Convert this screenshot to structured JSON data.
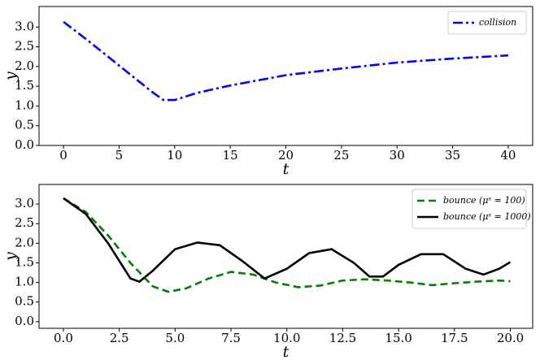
{
  "chart_data": [
    {
      "type": "line",
      "x_label": "t",
      "y_label": "y",
      "legend": "upper right",
      "xlim": [
        -2.2,
        42.2
      ],
      "ylim": [
        0,
        3.52
      ],
      "xticks": [
        0,
        5,
        10,
        15,
        20,
        25,
        30,
        35,
        40
      ],
      "yticks": [
        {
          "value": 0,
          "label": "0.0"
        },
        0.5,
        {
          "value": 1,
          "label": "1.0"
        },
        1.5,
        {
          "value": 2,
          "label": "2.0"
        },
        2.5,
        {
          "value": 3,
          "label": "3.0"
        }
      ],
      "series": [
        {
          "name": "collision",
          "color": "#0000ff",
          "linestyle": "dashdot",
          "x": [
            0,
            2,
            4,
            6,
            8,
            9,
            10,
            12,
            15,
            20,
            25,
            30,
            35,
            40
          ],
          "values": [
            3.13,
            2.7,
            2.25,
            1.8,
            1.35,
            1.15,
            1.15,
            1.33,
            1.52,
            1.78,
            1.95,
            2.1,
            2.2,
            2.28
          ]
        }
      ]
    },
    {
      "type": "line",
      "x_label": "t",
      "y_label": "y",
      "legend": "upper right",
      "xlim": [
        -1.09,
        21.0
      ],
      "ylim": [
        -0.17,
        3.5
      ],
      "xticks": [
        {
          "value": 0,
          "label": "0.0"
        },
        2.5,
        {
          "value": 5,
          "label": "5.0"
        },
        7.5,
        {
          "value": 10,
          "label": "10.0"
        },
        12.5,
        {
          "value": 15,
          "label": "15.0"
        },
        17.5,
        {
          "value": 20,
          "label": "20.0"
        }
      ],
      "yticks": [
        {
          "value": 0,
          "label": "0.0"
        },
        0.5,
        {
          "value": 1,
          "label": "1.0"
        },
        1.5,
        {
          "value": 2,
          "label": "2.0"
        },
        2.5,
        {
          "value": 3,
          "label": "3.0"
        }
      ],
      "series": [
        {
          "name": "bounce (μˢ = 100)",
          "color": "#008000",
          "linestyle": "dashed",
          "x": [
            0,
            1,
            2,
            3,
            4,
            4.7,
            5.5,
            6.5,
            7.5,
            8.5,
            9.5,
            10.5,
            11.5,
            12.5,
            13.5,
            14.5,
            15.5,
            16.5,
            17.5,
            18.5,
            19.5,
            20
          ],
          "values": [
            3.15,
            2.8,
            2.2,
            1.5,
            0.9,
            0.76,
            0.85,
            1.1,
            1.27,
            1.2,
            1.0,
            0.88,
            0.92,
            1.05,
            1.08,
            1.05,
            1.0,
            0.93,
            0.98,
            1.02,
            1.05,
            1.03
          ]
        },
        {
          "name": "bounce (μˢ = 1000)",
          "color": "#000000",
          "linestyle": "solid",
          "x": [
            0,
            1,
            2,
            3,
            3.4,
            4,
            5,
            6,
            7,
            8,
            9,
            10,
            11,
            12,
            13,
            13.7,
            14.3,
            15,
            16,
            17,
            18,
            18.8,
            19.5,
            20
          ],
          "values": [
            3.15,
            2.75,
            2.0,
            1.1,
            1.02,
            1.3,
            1.85,
            2.02,
            1.95,
            1.55,
            1.1,
            1.35,
            1.75,
            1.85,
            1.5,
            1.15,
            1.15,
            1.45,
            1.72,
            1.72,
            1.35,
            1.2,
            1.35,
            1.52
          ]
        }
      ]
    }
  ]
}
